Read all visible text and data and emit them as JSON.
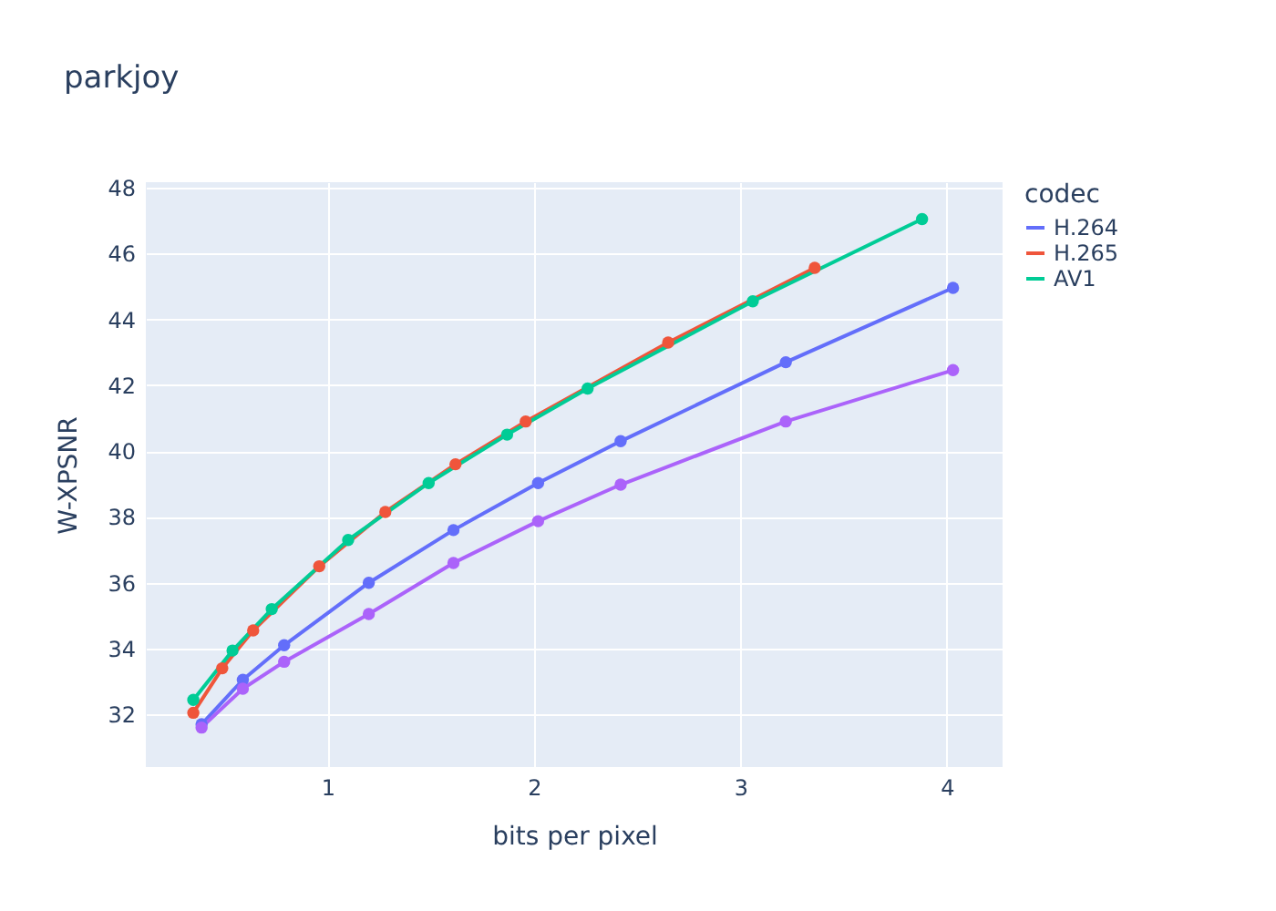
{
  "chart_data": {
    "type": "line",
    "title": "parkjoy",
    "xlabel": "bits per pixel",
    "ylabel": "W-XPSNR",
    "legend_title": "codec",
    "series": [
      {
        "name": "H.264",
        "color": "#636efa",
        "x": [
          0.39,
          0.59,
          0.79,
          1.2,
          1.61,
          2.02,
          2.42,
          3.22,
          4.03
        ],
        "values": [
          31.7,
          33.05,
          34.1,
          36.0,
          37.6,
          39.03,
          40.3,
          42.7,
          44.96
        ]
      },
      {
        "name": "H.265",
        "color": "#ef553b",
        "x": [
          0.35,
          0.49,
          0.64,
          0.96,
          1.28,
          1.62,
          1.96,
          2.65,
          3.36
        ],
        "values": [
          32.05,
          33.4,
          34.55,
          36.5,
          38.15,
          39.6,
          40.9,
          43.3,
          45.57
        ]
      },
      {
        "name": "AV1",
        "color": "#00cc96",
        "x": [
          0.35,
          0.54,
          0.73,
          1.1,
          1.49,
          1.87,
          2.26,
          3.06,
          3.88
        ],
        "values": [
          32.44,
          33.94,
          35.2,
          37.3,
          39.03,
          40.5,
          41.9,
          44.55,
          47.05
        ]
      },
      {
        "color": "#ab63fa",
        "x": [
          0.39,
          0.59,
          0.79,
          1.2,
          1.61,
          2.02,
          2.42,
          3.22,
          4.03
        ],
        "values": [
          31.6,
          32.78,
          33.6,
          35.05,
          36.6,
          37.87,
          38.98,
          40.9,
          42.46
        ]
      }
    ],
    "xlim": [
      0.12,
      4.27
    ],
    "ylim": [
      30.4,
      48.17
    ],
    "xticks": [
      1,
      2,
      3,
      4
    ],
    "yticks": [
      32,
      34,
      36,
      38,
      40,
      42,
      44,
      46,
      48
    ],
    "grid": true,
    "legend": "right",
    "marker": "circle",
    "line_style": "solid"
  }
}
